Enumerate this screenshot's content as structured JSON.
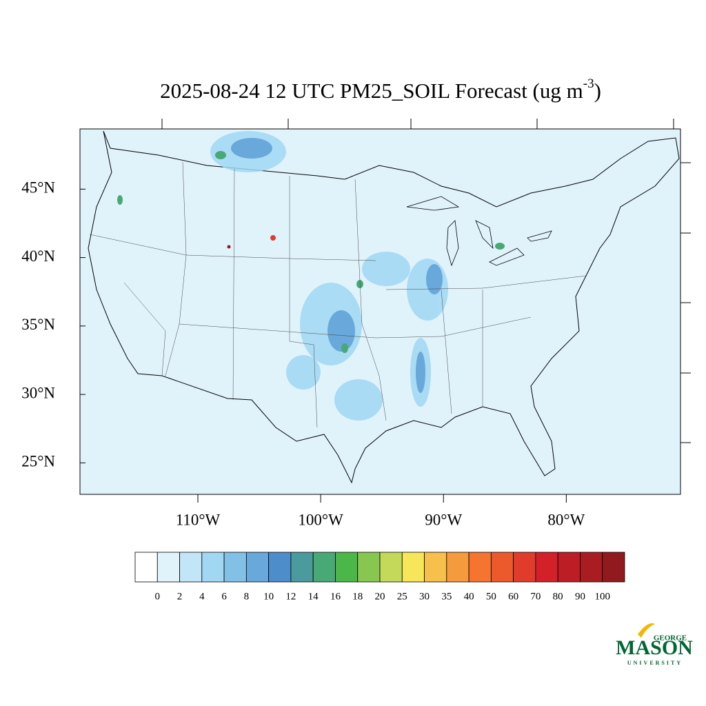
{
  "chart_data": {
    "type": "map",
    "title": "2025-08-24 12 UTC PM25_SOIL Forecast (ug m",
    "title_superscript": "-3",
    "title_end": ")",
    "xlim": [
      -119.6,
      -70.7
    ],
    "ylim": [
      22.7,
      49.4
    ],
    "xticks": [
      {
        "value": -110,
        "label": "110°W"
      },
      {
        "value": -100,
        "label": "100°W"
      },
      {
        "value": -90,
        "label": "90°W"
      },
      {
        "value": -80,
        "label": "80°W"
      }
    ],
    "yticks": [
      {
        "value": 45,
        "label": "45°N"
      },
      {
        "value": 40,
        "label": "40°N"
      },
      {
        "value": 35,
        "label": "35°N"
      },
      {
        "value": 30,
        "label": "30°N"
      },
      {
        "value": 25,
        "label": "25°N"
      }
    ],
    "colorbar": {
      "levels": [
        0,
        2,
        4,
        6,
        8,
        10,
        12,
        14,
        16,
        18,
        20,
        25,
        30,
        35,
        40,
        50,
        60,
        70,
        80,
        90,
        100
      ],
      "colors": [
        "#ffffff",
        "#e0f3fb",
        "#c2e6f7",
        "#a1d7f3",
        "#83c0e6",
        "#68a8da",
        "#4d8dc9",
        "#4a9a9e",
        "#48a876",
        "#4bb748",
        "#87c750",
        "#c4d85a",
        "#f7e659",
        "#f7bf4b",
        "#f59b3e",
        "#f47430",
        "#ec5a2c",
        "#e13c2b",
        "#d42029",
        "#bd1e26",
        "#a91c22",
        "#901a1e"
      ]
    }
  },
  "logo": {
    "top": "GEORGE",
    "main": "MASON",
    "bottom": "UNIVERSITY"
  }
}
